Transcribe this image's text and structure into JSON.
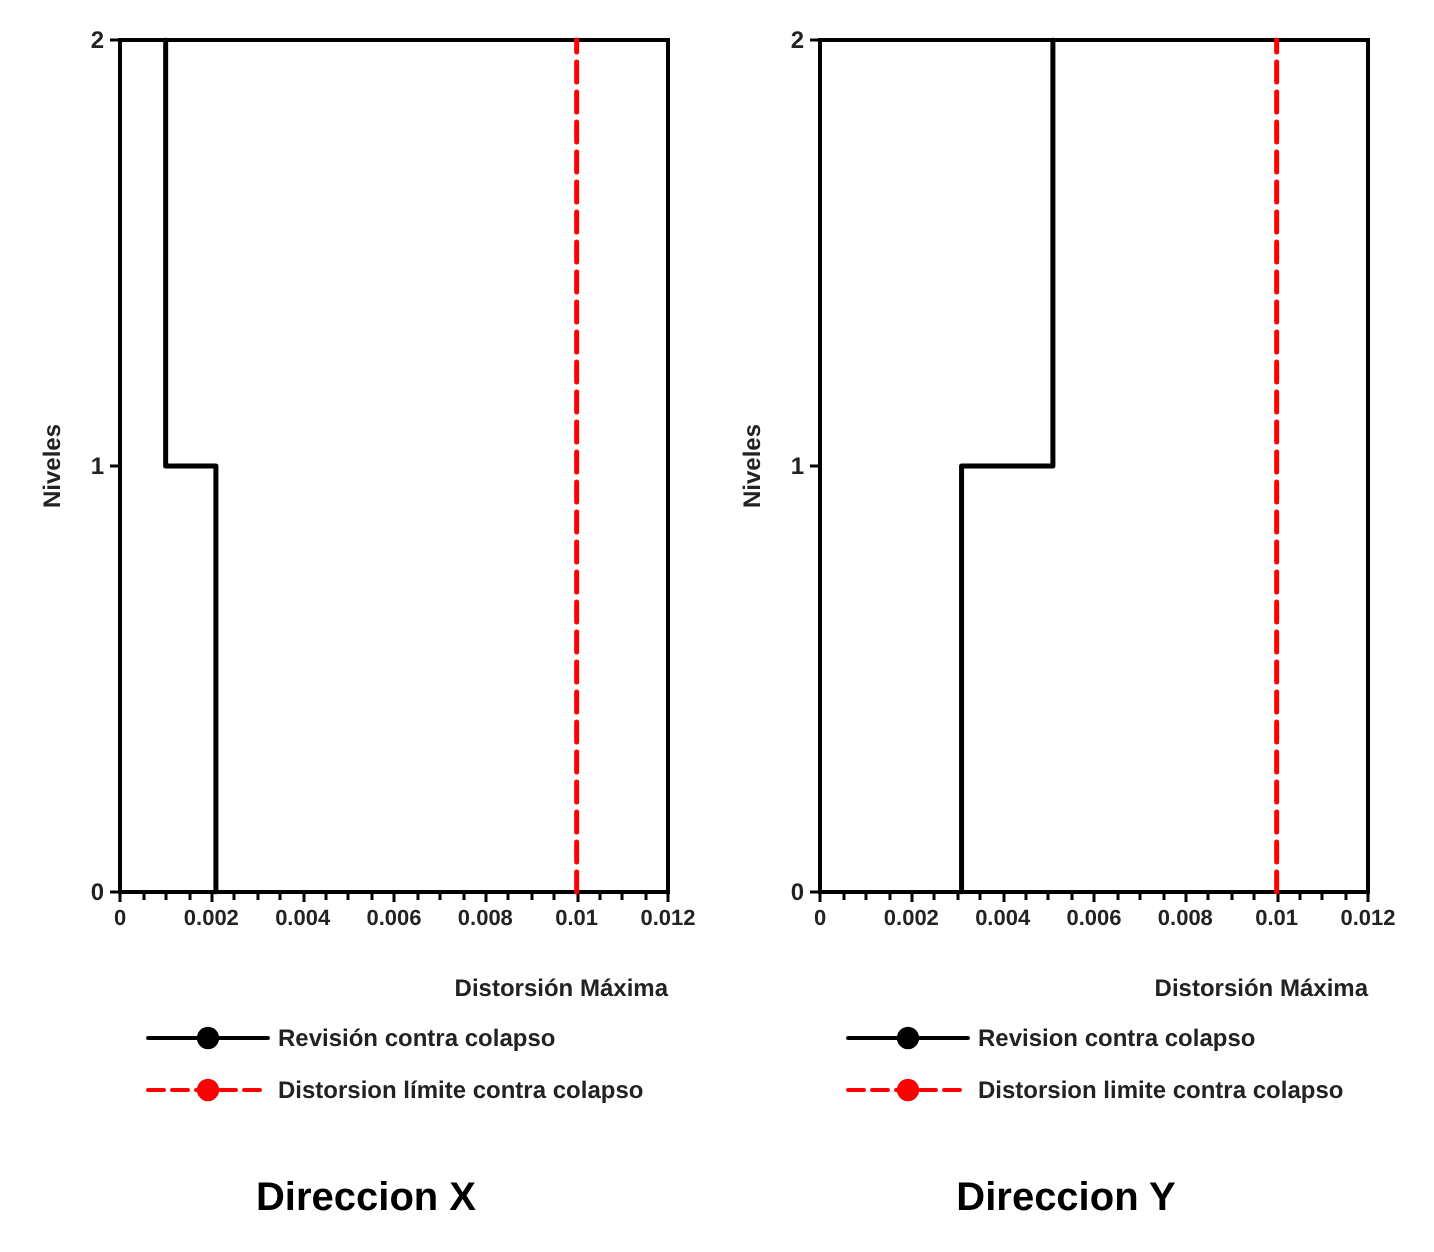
{
  "chart_data": [
    {
      "type": "line",
      "title": "Direccion X",
      "xlabel": "Distorsión Máxima",
      "ylabel": "Niveles",
      "xlim": [
        0,
        0.012
      ],
      "xticks": [
        0,
        0.002,
        0.004,
        0.006,
        0.008,
        0.01,
        0.012
      ],
      "ylim": [
        0,
        2
      ],
      "yticks": [
        0,
        1,
        2
      ],
      "grid": false,
      "legend": "bottom",
      "marker": "none",
      "series": [
        {
          "name": "Revisión contra colapso",
          "color": "#000000",
          "line_style": "solid",
          "x": [
            0.0021,
            0.0021,
            0.001,
            0.001
          ],
          "values": [
            0,
            1,
            1,
            2
          ]
        },
        {
          "name": "Distorsion límite contra colapso",
          "color": "#ff0000",
          "line_style": "dashed",
          "x": [
            0.01,
            0.01
          ],
          "values": [
            0,
            2
          ]
        }
      ]
    },
    {
      "type": "line",
      "title": "Direccion Y",
      "xlabel": "Distorsión Máxima",
      "ylabel": "Niveles",
      "xlim": [
        0,
        0.012
      ],
      "xticks": [
        0,
        0.002,
        0.004,
        0.006,
        0.008,
        0.01,
        0.012
      ],
      "ylim": [
        0,
        2
      ],
      "yticks": [
        0,
        1,
        2
      ],
      "grid": false,
      "legend": "bottom",
      "marker": "none",
      "series": [
        {
          "name": "Revision contra colapso",
          "color": "#000000",
          "line_style": "solid",
          "x": [
            0.0031,
            0.0031,
            0.0051,
            0.0051
          ],
          "values": [
            0,
            1,
            1,
            2
          ]
        },
        {
          "name": "Distorsion limite contra colapso",
          "color": "#ff0000",
          "line_style": "dashed",
          "x": [
            0.01,
            0.01
          ],
          "values": [
            0,
            2
          ]
        }
      ]
    }
  ]
}
